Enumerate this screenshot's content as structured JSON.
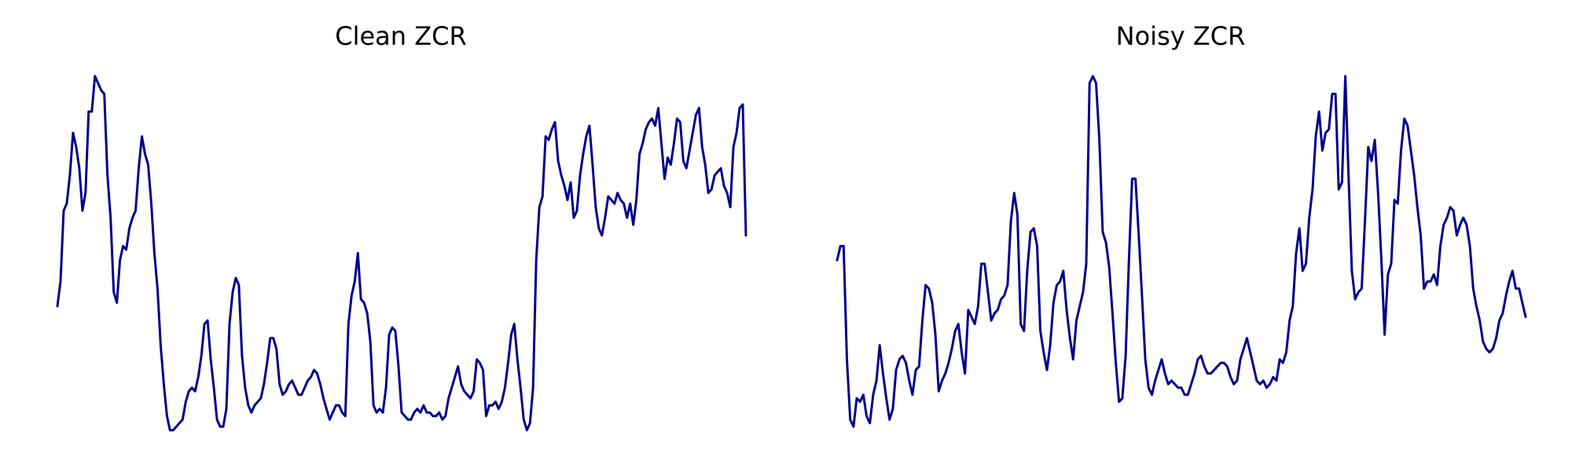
{
  "colors": {
    "line": "#00008b",
    "background": "#ffffff"
  },
  "chart_data": [
    {
      "type": "line",
      "title": "Clean ZCR",
      "axes_visible": false,
      "grid": false,
      "ylim": [
        0,
        1
      ],
      "series": [
        {
          "values": [
            0.35,
            0.42,
            0.62,
            0.64,
            0.72,
            0.84,
            0.8,
            0.74,
            0.62,
            0.67,
            0.9,
            0.9,
            1.0,
            0.98,
            0.96,
            0.95,
            0.72,
            0.6,
            0.39,
            0.36,
            0.48,
            0.52,
            0.51,
            0.57,
            0.6,
            0.62,
            0.74,
            0.83,
            0.78,
            0.75,
            0.64,
            0.5,
            0.4,
            0.24,
            0.13,
            0.04,
            0.0,
            0.0,
            0.01,
            0.02,
            0.03,
            0.08,
            0.11,
            0.12,
            0.11,
            0.15,
            0.21,
            0.3,
            0.31,
            0.2,
            0.12,
            0.03,
            0.01,
            0.01,
            0.06,
            0.3,
            0.39,
            0.43,
            0.41,
            0.21,
            0.12,
            0.07,
            0.05,
            0.07,
            0.08,
            0.09,
            0.13,
            0.19,
            0.26,
            0.26,
            0.23,
            0.13,
            0.1,
            0.11,
            0.13,
            0.14,
            0.12,
            0.1,
            0.1,
            0.12,
            0.14,
            0.15,
            0.17,
            0.16,
            0.13,
            0.09,
            0.06,
            0.03,
            0.05,
            0.07,
            0.07,
            0.05,
            0.04,
            0.3,
            0.38,
            0.42,
            0.5,
            0.37,
            0.36,
            0.33,
            0.25,
            0.07,
            0.05,
            0.06,
            0.05,
            0.12,
            0.27,
            0.29,
            0.28,
            0.18,
            0.05,
            0.04,
            0.03,
            0.03,
            0.05,
            0.06,
            0.05,
            0.07,
            0.05,
            0.05,
            0.04,
            0.04,
            0.05,
            0.03,
            0.04,
            0.09,
            0.12,
            0.15,
            0.18,
            0.13,
            0.11,
            0.1,
            0.09,
            0.11,
            0.2,
            0.19,
            0.17,
            0.04,
            0.07,
            0.07,
            0.08,
            0.06,
            0.08,
            0.12,
            0.19,
            0.27,
            0.3,
            0.2,
            0.12,
            0.03,
            0.0,
            0.02,
            0.12,
            0.48,
            0.63,
            0.66,
            0.83,
            0.82,
            0.85,
            0.87,
            0.76,
            0.72,
            0.69,
            0.65,
            0.7,
            0.6,
            0.62,
            0.72,
            0.78,
            0.83,
            0.86,
            0.75,
            0.63,
            0.57,
            0.55,
            0.6,
            0.66,
            0.65,
            0.64,
            0.67,
            0.65,
            0.64,
            0.6,
            0.64,
            0.58,
            0.65,
            0.78,
            0.81,
            0.85,
            0.87,
            0.88,
            0.86,
            0.91,
            0.81,
            0.71,
            0.77,
            0.75,
            0.81,
            0.88,
            0.87,
            0.76,
            0.74,
            0.79,
            0.84,
            0.89,
            0.91,
            0.8,
            0.75,
            0.67,
            0.68,
            0.72,
            0.73,
            0.74,
            0.69,
            0.67,
            0.63,
            0.8,
            0.84,
            0.91,
            0.92,
            0.55
          ]
        }
      ]
    },
    {
      "type": "line",
      "title": "Noisy ZCR",
      "axes_visible": false,
      "grid": false,
      "ylim": [
        0,
        1
      ],
      "series": [
        {
          "values": [
            0.48,
            0.52,
            0.52,
            0.2,
            0.03,
            0.01,
            0.09,
            0.08,
            0.1,
            0.04,
            0.02,
            0.1,
            0.14,
            0.24,
            0.16,
            0.09,
            0.03,
            0.06,
            0.17,
            0.2,
            0.21,
            0.19,
            0.14,
            0.1,
            0.17,
            0.18,
            0.31,
            0.41,
            0.4,
            0.36,
            0.27,
            0.11,
            0.14,
            0.16,
            0.19,
            0.23,
            0.28,
            0.3,
            0.22,
            0.16,
            0.34,
            0.32,
            0.3,
            0.35,
            0.47,
            0.47,
            0.39,
            0.31,
            0.33,
            0.34,
            0.37,
            0.38,
            0.41,
            0.59,
            0.67,
            0.61,
            0.3,
            0.28,
            0.45,
            0.56,
            0.57,
            0.52,
            0.28,
            0.22,
            0.17,
            0.24,
            0.36,
            0.41,
            0.42,
            0.45,
            0.34,
            0.26,
            0.2,
            0.31,
            0.35,
            0.39,
            0.47,
            0.98,
            1.0,
            0.98,
            0.82,
            0.56,
            0.53,
            0.46,
            0.33,
            0.19,
            0.08,
            0.09,
            0.21,
            0.48,
            0.71,
            0.71,
            0.55,
            0.38,
            0.2,
            0.12,
            0.1,
            0.14,
            0.17,
            0.2,
            0.16,
            0.13,
            0.14,
            0.13,
            0.12,
            0.12,
            0.1,
            0.1,
            0.13,
            0.16,
            0.2,
            0.21,
            0.18,
            0.16,
            0.16,
            0.17,
            0.18,
            0.19,
            0.19,
            0.18,
            0.15,
            0.13,
            0.14,
            0.2,
            0.23,
            0.26,
            0.22,
            0.18,
            0.14,
            0.13,
            0.14,
            0.12,
            0.13,
            0.15,
            0.14,
            0.2,
            0.19,
            0.22,
            0.31,
            0.35,
            0.5,
            0.57,
            0.45,
            0.47,
            0.6,
            0.68,
            0.83,
            0.9,
            0.79,
            0.84,
            0.85,
            0.95,
            0.95,
            0.68,
            0.7,
            1.0,
            0.72,
            0.45,
            0.37,
            0.39,
            0.4,
            0.59,
            0.8,
            0.76,
            0.82,
            0.67,
            0.48,
            0.27,
            0.44,
            0.47,
            0.65,
            0.64,
            0.79,
            0.88,
            0.86,
            0.79,
            0.72,
            0.63,
            0.55,
            0.4,
            0.42,
            0.42,
            0.44,
            0.41,
            0.52,
            0.58,
            0.6,
            0.63,
            0.62,
            0.55,
            0.58,
            0.6,
            0.58,
            0.52,
            0.4,
            0.35,
            0.31,
            0.25,
            0.23,
            0.22,
            0.23,
            0.26,
            0.31,
            0.33,
            0.38,
            0.42,
            0.45,
            0.4,
            0.4,
            0.36,
            0.32
          ]
        }
      ]
    }
  ]
}
